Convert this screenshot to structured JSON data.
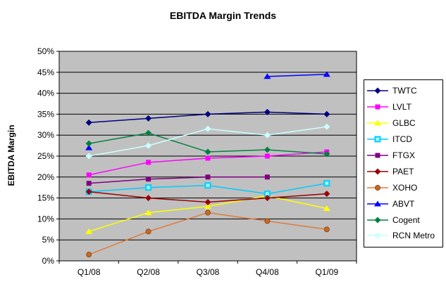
{
  "chart_data": {
    "type": "line",
    "title": "EBITDA Margin Trends",
    "ylabel": "EBITDA Margin",
    "xlabel": "",
    "categories": [
      "Q1/08",
      "Q2/08",
      "Q3/08",
      "Q4/08",
      "Q1/09"
    ],
    "ylim": [
      0,
      50
    ],
    "ytick_step": 5,
    "ytick_labels": [
      "0%",
      "5%",
      "10%",
      "15%",
      "20%",
      "25%",
      "30%",
      "35%",
      "40%",
      "45%",
      "50%"
    ],
    "grid": "horizontal",
    "legend_position": "right",
    "plot_bg_color": "#C0C0C0",
    "gridline_color": "#000000",
    "series": [
      {
        "name": "TWTC",
        "color": "#000080",
        "marker": "diamond",
        "marker_color": "#000080",
        "values": [
          33,
          34,
          35,
          35.5,
          35
        ]
      },
      {
        "name": "LVLT",
        "color": "#FF00FF",
        "marker": "square",
        "marker_color": "#FF00FF",
        "values": [
          20.5,
          23.5,
          24.5,
          25,
          26
        ]
      },
      {
        "name": "GLBC",
        "color": "#FFFF00",
        "marker": "triangle",
        "marker_color": "#FFFF00",
        "values": [
          7,
          11.5,
          13,
          15.5,
          12.5
        ]
      },
      {
        "name": "ITCD",
        "color": "#00CCFF",
        "marker": "square-star",
        "marker_color": "#00CCFF",
        "values": [
          16.5,
          17.5,
          18,
          16,
          18.5
        ]
      },
      {
        "name": "FTGX",
        "color": "#800080",
        "marker": "square",
        "marker_color": "#800080",
        "values": [
          18.5,
          19.5,
          20,
          20,
          null
        ]
      },
      {
        "name": "PAET",
        "color": "#990000",
        "marker": "diamond",
        "marker_color": "#990000",
        "values": [
          16.5,
          15,
          14,
          15,
          16
        ]
      },
      {
        "name": "XOHO",
        "color": "#E07B39",
        "marker": "circle",
        "marker_color": "#C96A28",
        "values": [
          1.5,
          7,
          11.5,
          9.5,
          7.5
        ]
      },
      {
        "name": "ABVT",
        "color": "#0000FF",
        "marker": "triangle",
        "marker_color": "#0000FF",
        "values": [
          27,
          null,
          null,
          44,
          44.5
        ]
      },
      {
        "name": "Cogent",
        "color": "#008040",
        "marker": "diamond",
        "marker_color": "#008040",
        "values": [
          28,
          30.5,
          26,
          26.5,
          25.5
        ]
      },
      {
        "name": "RCN Metro",
        "color": "#CCFFFF",
        "marker": "diamond",
        "marker_color": "#CCFFFF",
        "values": [
          25,
          27.5,
          31.5,
          30,
          32
        ]
      }
    ]
  }
}
